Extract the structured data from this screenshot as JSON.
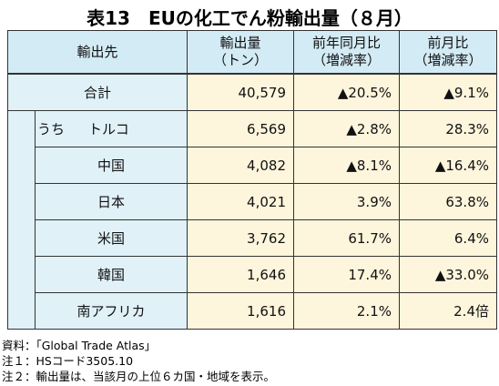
{
  "title": "表13　EUの化工でん粉輸出量（８月）",
  "table": {
    "header": [
      [
        "輸出先"
      ],
      [
        "輸出量",
        "（トン）"
      ],
      [
        "前年同月比",
        "（増減率）"
      ],
      [
        "前月比",
        "（増減率）"
      ]
    ],
    "rows": [
      [
        "合計",
        "40,579",
        "▲20.5%",
        "▲9.1%"
      ],
      [
        "トルコ",
        "6,569",
        "▲2.8%",
        "28.3%"
      ],
      [
        "中国",
        "4,082",
        "▲8.1%",
        "▲16.4%"
      ],
      [
        "日本",
        "4,021",
        "3.9%",
        "63.8%"
      ],
      [
        "米国",
        "3,762",
        "61.7%",
        "6.4%"
      ],
      [
        "韓国",
        "1,646",
        "17.4%",
        "▲33.0%"
      ],
      [
        "南アフリカ",
        "1,616",
        "2.1%",
        "2.4倍"
      ]
    ],
    "group_label": "うち"
  },
  "notes": [
    "資料：「Global Trade Atlas」",
    "注１：HSコード3505.10",
    "注２：輸出量は、当該月の上位６カ国・地域を表示。"
  ]
}
